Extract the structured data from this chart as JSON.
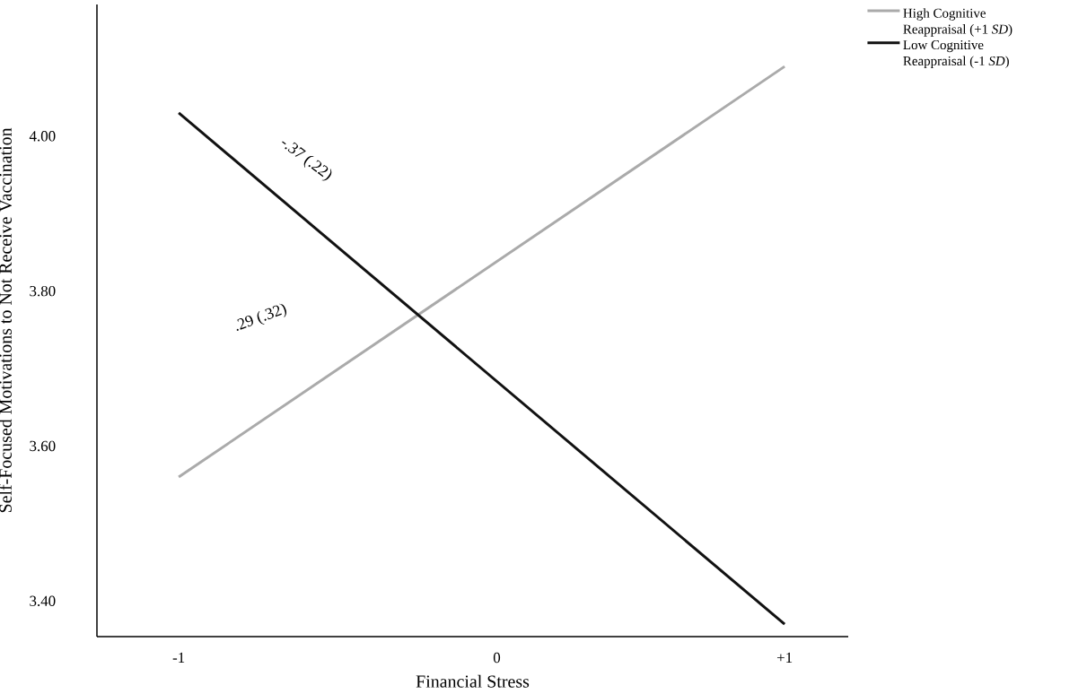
{
  "chart_data": {
    "type": "line",
    "xlabel": "Financial Stress",
    "ylabel": "Self-Focused Motivations to Not Receive Vaccination",
    "x": [
      -1,
      1
    ],
    "series": [
      {
        "name": "High Cognitive Reappraisal (+1 *SD*)",
        "color": "#aaaaaa",
        "values": [
          3.56,
          4.09
        ]
      },
      {
        "name": "Low Cognitive Reappraisal (-1 *SD*)",
        "color": "#111111",
        "values": [
          4.03,
          3.37
        ]
      }
    ],
    "xlim": [
      -1.27,
      1.21
    ],
    "ylim": [
      3.354,
      4.17
    ],
    "xticks": [
      {
        "value": -1,
        "label": "-1"
      },
      {
        "value": 0.05,
        "label": "0"
      },
      {
        "value": 1,
        "label": "+1"
      }
    ],
    "yticks": [
      {
        "value": 3.4,
        "label": "3.40"
      },
      {
        "value": 3.6,
        "label": "3.60"
      },
      {
        "value": 3.8,
        "label": "3.80"
      },
      {
        "value": 4.0,
        "label": "4.00"
      }
    ],
    "annotations": [
      "-.37 (.22)",
      ".29 (.32)"
    ],
    "legend": "top right",
    "grid": false,
    "marker": "none",
    "line_style": "solid"
  }
}
